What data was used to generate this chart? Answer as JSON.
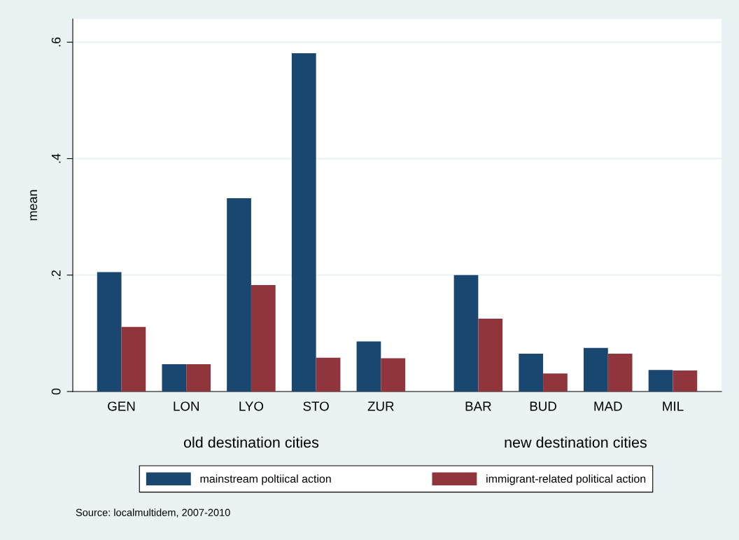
{
  "chart_data": {
    "type": "bar",
    "ylabel": "mean",
    "categories": [
      "GEN",
      "LON",
      "LYO",
      "STO",
      "ZUR",
      null,
      "BAR",
      "BUD",
      "MAD",
      "MIL"
    ],
    "series": [
      {
        "name": "mainstream poltiical action",
        "color": "#1a476f",
        "values": [
          0.205,
          0.047,
          0.332,
          0.581,
          0.086,
          null,
          0.2,
          0.065,
          0.075,
          0.037
        ]
      },
      {
        "name": "immigrant-related political action",
        "color": "#90353b",
        "values": [
          0.111,
          0.047,
          0.183,
          0.058,
          0.057,
          null,
          0.125,
          0.031,
          0.065,
          0.036
        ]
      }
    ],
    "ylim": [
      0,
      0.64
    ],
    "yticks": [
      {
        "value": 0,
        "label": "0"
      },
      {
        "value": 0.2,
        "label": ".2"
      },
      {
        "value": 0.4,
        "label": ".4"
      },
      {
        "value": 0.6,
        "label": ".6"
      }
    ],
    "grid": "y",
    "legend": "bottom",
    "annotations": [
      "old destination cities",
      "new destination cities",
      "Source: localmultidem, 2007-2010"
    ]
  }
}
